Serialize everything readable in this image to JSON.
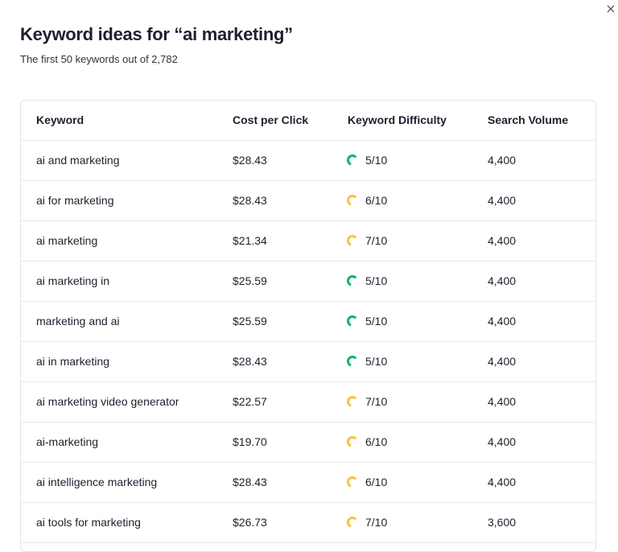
{
  "header": {
    "title": "Keyword ideas for “ai marketing”",
    "subtitle": "The first 50 keywords out of 2,782"
  },
  "table": {
    "columns": [
      "Keyword",
      "Cost per Click",
      "Keyword Difficulty",
      "Search Volume"
    ],
    "rows": [
      {
        "keyword": "ai and marketing",
        "cpc": "$28.43",
        "difficulty": "5/10",
        "difficulty_color": "#16b36b",
        "volume": "4,400"
      },
      {
        "keyword": "ai for marketing",
        "cpc": "$28.43",
        "difficulty": "6/10",
        "difficulty_color": "#f5c542",
        "volume": "4,400"
      },
      {
        "keyword": "ai marketing",
        "cpc": "$21.34",
        "difficulty": "7/10",
        "difficulty_color": "#f5c542",
        "volume": "4,400"
      },
      {
        "keyword": "ai marketing in",
        "cpc": "$25.59",
        "difficulty": "5/10",
        "difficulty_color": "#16b36b",
        "volume": "4,400"
      },
      {
        "keyword": "marketing and ai",
        "cpc": "$25.59",
        "difficulty": "5/10",
        "difficulty_color": "#16b36b",
        "volume": "4,400"
      },
      {
        "keyword": "ai in marketing",
        "cpc": "$28.43",
        "difficulty": "5/10",
        "difficulty_color": "#16b36b",
        "volume": "4,400"
      },
      {
        "keyword": "ai marketing video generator",
        "cpc": "$22.57",
        "difficulty": "7/10",
        "difficulty_color": "#f5c542",
        "volume": "4,400"
      },
      {
        "keyword": "ai-marketing",
        "cpc": "$19.70",
        "difficulty": "6/10",
        "difficulty_color": "#f5c542",
        "volume": "4,400"
      },
      {
        "keyword": "ai intelligence marketing",
        "cpc": "$28.43",
        "difficulty": "6/10",
        "difficulty_color": "#f5c542",
        "volume": "4,400"
      },
      {
        "keyword": "ai tools for marketing",
        "cpc": "$26.73",
        "difficulty": "7/10",
        "difficulty_color": "#f5c542",
        "volume": "3,600"
      }
    ]
  }
}
